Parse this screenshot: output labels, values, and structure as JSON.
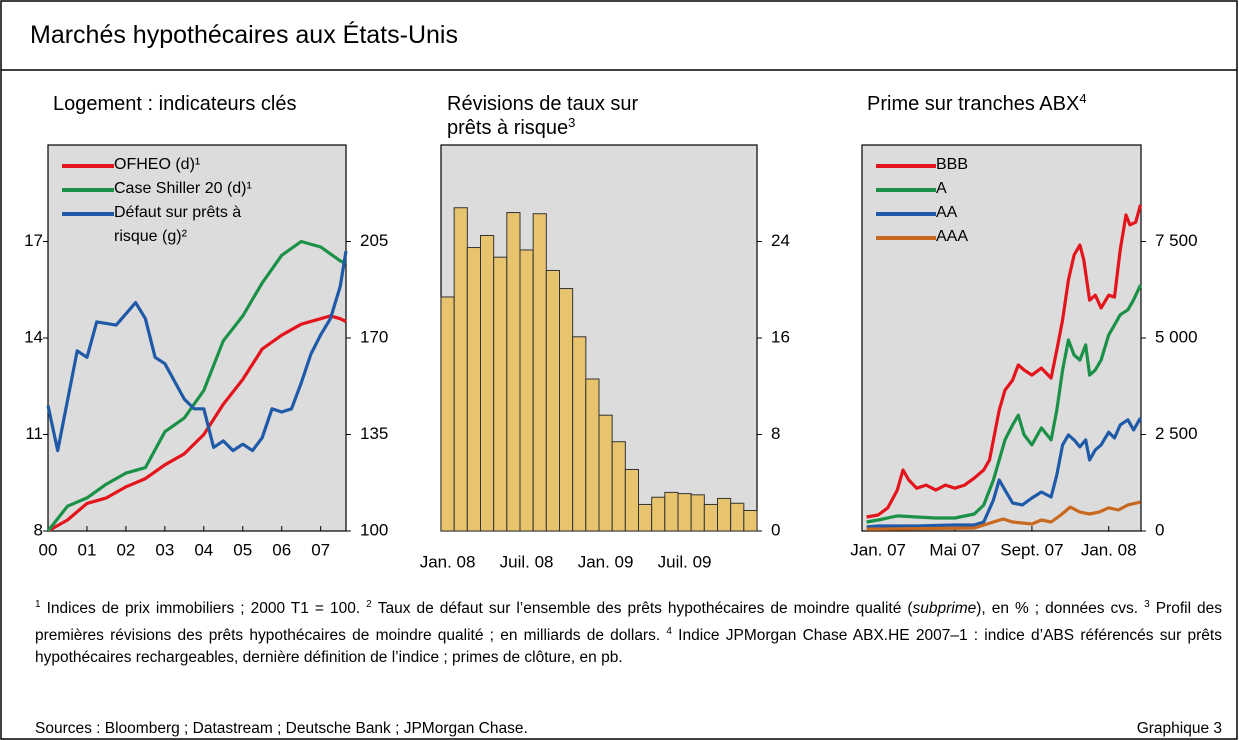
{
  "title": "Marchés hypothécaires aux États-Unis",
  "chart_data": [
    {
      "type": "line",
      "title_lines": [
        "Logement : indicateurs clés"
      ],
      "xlim": [
        2000,
        2007.65
      ],
      "xticks": [
        {
          "value": 2000,
          "label": "00"
        },
        {
          "value": 2001,
          "label": "01"
        },
        {
          "value": 2002,
          "label": "02"
        },
        {
          "value": 2003,
          "label": "03"
        },
        {
          "value": 2004,
          "label": "04"
        },
        {
          "value": 2005,
          "label": "05"
        },
        {
          "value": 2006,
          "label": "06"
        },
        {
          "value": 2007,
          "label": "07"
        }
      ],
      "ylim": [
        8,
        20
      ],
      "yticks": [
        8,
        11,
        14,
        17
      ],
      "y2lim": [
        100,
        240
      ],
      "y2ticks": [
        100,
        135,
        170,
        205
      ],
      "y_axis_side": "left",
      "legend": "upper left",
      "series": [
        {
          "name": "OFHEO (d)¹",
          "color": "#e3141b",
          "axis": "y2",
          "x": [
            2000,
            2000.5,
            2001,
            2001.5,
            2002,
            2002.5,
            2003,
            2003.5,
            2004,
            2004.5,
            2005,
            2005.5,
            2006,
            2006.5,
            2007,
            2007.25,
            2007.5,
            2007.65
          ],
          "values": [
            100,
            104,
            110,
            112,
            116,
            119,
            124,
            128,
            135,
            146,
            155,
            166,
            171,
            175,
            177,
            178,
            177,
            176
          ]
        },
        {
          "name": "Case Shiller 20 (d)¹",
          "color": "#1b9147",
          "axis": "y2",
          "x": [
            2000,
            2000.5,
            2001,
            2001.5,
            2002,
            2002.5,
            2003,
            2003.5,
            2004,
            2004.5,
            2005,
            2005.5,
            2006,
            2006.5,
            2007,
            2007.5,
            2007.65
          ],
          "values": [
            100,
            109,
            112,
            117,
            121,
            123,
            136,
            141,
            151,
            169,
            178,
            190,
            200,
            205,
            203,
            198,
            197
          ]
        },
        {
          "name": "Défaut sur prêts à risque (g)²",
          "color": "#1f5aa8",
          "axis": "y",
          "x": [
            2000,
            2000.25,
            2000.75,
            2001,
            2001.25,
            2001.75,
            2002.25,
            2002.5,
            2002.75,
            2003,
            2003.5,
            2003.75,
            2004,
            2004.25,
            2004.5,
            2004.75,
            2005,
            2005.25,
            2005.5,
            2005.75,
            2006,
            2006.25,
            2006.5,
            2006.75,
            2007,
            2007.25,
            2007.5,
            2007.65
          ],
          "values": [
            11.9,
            10.5,
            13.6,
            13.4,
            14.5,
            14.4,
            15.1,
            14.6,
            13.4,
            13.2,
            12.1,
            11.8,
            11.8,
            10.6,
            10.8,
            10.5,
            10.7,
            10.5,
            10.9,
            11.8,
            11.7,
            11.8,
            12.6,
            13.5,
            14.1,
            14.6,
            15.6,
            16.7
          ]
        }
      ]
    },
    {
      "type": "bar",
      "title_lines": [
        "Révisions de taux sur",
        "prêts à risque"
      ],
      "title_note": "3",
      "categories": [
        "Jan. 08",
        null,
        null,
        null,
        null,
        null,
        "Juil. 08",
        null,
        null,
        null,
        null,
        null,
        "Jan. 09",
        null,
        null,
        null,
        null,
        null,
        "Juil. 09",
        null,
        null,
        null,
        null,
        null
      ],
      "values": [
        19.4,
        26.8,
        23.5,
        24.5,
        22.7,
        26.4,
        23.3,
        26.3,
        21.6,
        20.1,
        16.1,
        12.6,
        9.6,
        7.4,
        5.1,
        2.2,
        2.8,
        3.2,
        3.1,
        3.0,
        2.2,
        2.7,
        2.3,
        1.7
      ],
      "color": "#e8c46f",
      "ylim": [
        0,
        32
      ],
      "yticks": [
        0,
        8,
        16,
        24
      ],
      "y_axis_side": "right"
    },
    {
      "type": "line",
      "title_lines": [
        "Prime sur tranches ABX"
      ],
      "title_note": "4",
      "xlim": [
        2006.93,
        2008.14
      ],
      "xticks": [
        {
          "value": 2007,
          "label": "Jan. 07"
        },
        {
          "value": 2007.333,
          "label": "Mai 07"
        },
        {
          "value": 2007.667,
          "label": "Sept. 07"
        },
        {
          "value": 2008,
          "label": "Jan. 08"
        }
      ],
      "ylim": [
        0,
        10000
      ],
      "yticks": [
        0,
        {
          "value": 2500,
          "label": "2 500"
        },
        {
          "value": 5000,
          "label": "5 000"
        },
        {
          "value": 7500,
          "label": "7 500"
        }
      ],
      "y_axis_side": "right",
      "legend": "upper left",
      "series": [
        {
          "name": "BBB",
          "color": "#e3141b",
          "x": [
            2006.95,
            2007.0,
            2007.042,
            2007.083,
            2007.108,
            2007.133,
            2007.167,
            2007.208,
            2007.25,
            2007.292,
            2007.333,
            2007.375,
            2007.417,
            2007.458,
            2007.483,
            2007.5,
            2007.525,
            2007.55,
            2007.583,
            2007.608,
            2007.633,
            2007.667,
            2007.708,
            2007.75,
            2007.775,
            2007.8,
            2007.825,
            2007.85,
            2007.875,
            2007.892,
            2007.917,
            2007.942,
            2007.967,
            2008.0,
            2008.025,
            2008.05,
            2008.075,
            2008.092,
            2008.117,
            2008.138
          ],
          "values": [
            363,
            415,
            600,
            1060,
            1580,
            1320,
            1110,
            1190,
            1060,
            1190,
            1110,
            1190,
            1370,
            1580,
            1840,
            2360,
            3130,
            3650,
            3910,
            4300,
            4170,
            4040,
            4220,
            3960,
            4690,
            5470,
            6500,
            7150,
            7410,
            7020,
            5980,
            6110,
            5780,
            6110,
            6060,
            7280,
            8190,
            7930,
            8000,
            8450
          ]
        },
        {
          "name": "A",
          "color": "#1b9147",
          "x": [
            2006.95,
            2007.0,
            2007.083,
            2007.167,
            2007.25,
            2007.333,
            2007.417,
            2007.458,
            2007.5,
            2007.525,
            2007.55,
            2007.583,
            2007.608,
            2007.633,
            2007.667,
            2007.708,
            2007.75,
            2007.775,
            2007.8,
            2007.825,
            2007.85,
            2007.875,
            2007.9,
            2007.917,
            2007.942,
            2007.967,
            2008.0,
            2008.025,
            2008.05,
            2008.083,
            2008.108,
            2008.138
          ],
          "values": [
            233,
            285,
            390,
            363,
            337,
            337,
            440,
            670,
            1320,
            1840,
            2360,
            2750,
            3000,
            2490,
            2230,
            2670,
            2360,
            3130,
            4170,
            4950,
            4560,
            4430,
            4820,
            4040,
            4170,
            4430,
            5080,
            5340,
            5600,
            5730,
            5990,
            6370
          ]
        },
        {
          "name": "AA",
          "color": "#1f5aa8",
          "x": [
            2006.95,
            2007.0,
            2007.167,
            2007.333,
            2007.417,
            2007.458,
            2007.5,
            2007.525,
            2007.55,
            2007.583,
            2007.625,
            2007.667,
            2007.708,
            2007.75,
            2007.775,
            2007.8,
            2007.825,
            2007.85,
            2007.875,
            2007.9,
            2007.917,
            2007.942,
            2007.967,
            2008.0,
            2008.025,
            2008.05,
            2008.083,
            2008.108,
            2008.138
          ],
          "values": [
            104,
            130,
            130,
            155,
            155,
            233,
            800,
            1320,
            1060,
            725,
            675,
            855,
            1010,
            880,
            1450,
            2230,
            2490,
            2360,
            2180,
            2360,
            1840,
            2100,
            2230,
            2560,
            2410,
            2750,
            2880,
            2620,
            2930
          ]
        },
        {
          "name": "AAA",
          "color": "#c9691f",
          "x": [
            2006.95,
            2007.0,
            2007.417,
            2007.5,
            2007.542,
            2007.583,
            2007.625,
            2007.667,
            2007.708,
            2007.75,
            2007.792,
            2007.833,
            2007.875,
            2007.917,
            2007.958,
            2008.0,
            2008.042,
            2008.083,
            2008.138
          ],
          "values": [
            50,
            50,
            78,
            233,
            311,
            233,
            207,
            181,
            285,
            233,
            415,
            620,
            490,
            440,
            490,
            600,
            545,
            675,
            750
          ]
        }
      ]
    }
  ],
  "footnotes": [
    {
      "mark": "1",
      "text": "Indices de prix immobiliers ; 2000 T1 = 100."
    },
    {
      "mark": "2",
      "text": "Taux de défaut sur l’ensemble des prêts hypothécaires de moindre qualité (",
      "italic": "subprime",
      "text_after": "), en % ; données cvs."
    },
    {
      "mark": "3",
      "text": "Profil des premières révisions des prêts hypothécaires de moindre qualité ; en milliards de dollars."
    },
    {
      "mark": "4",
      "text": "Indice JPMorgan Chase ABX.HE 2007–1 : indice d’ABS référencés sur prêts hypothécaires rechargeables, dernière définition de l’indice ; primes de clôture, en pb."
    }
  ],
  "sources": "Sources : Bloomberg ; Datastream ; Deutsche Bank ; JPMorgan Chase.",
  "figure_label": "Graphique 3"
}
